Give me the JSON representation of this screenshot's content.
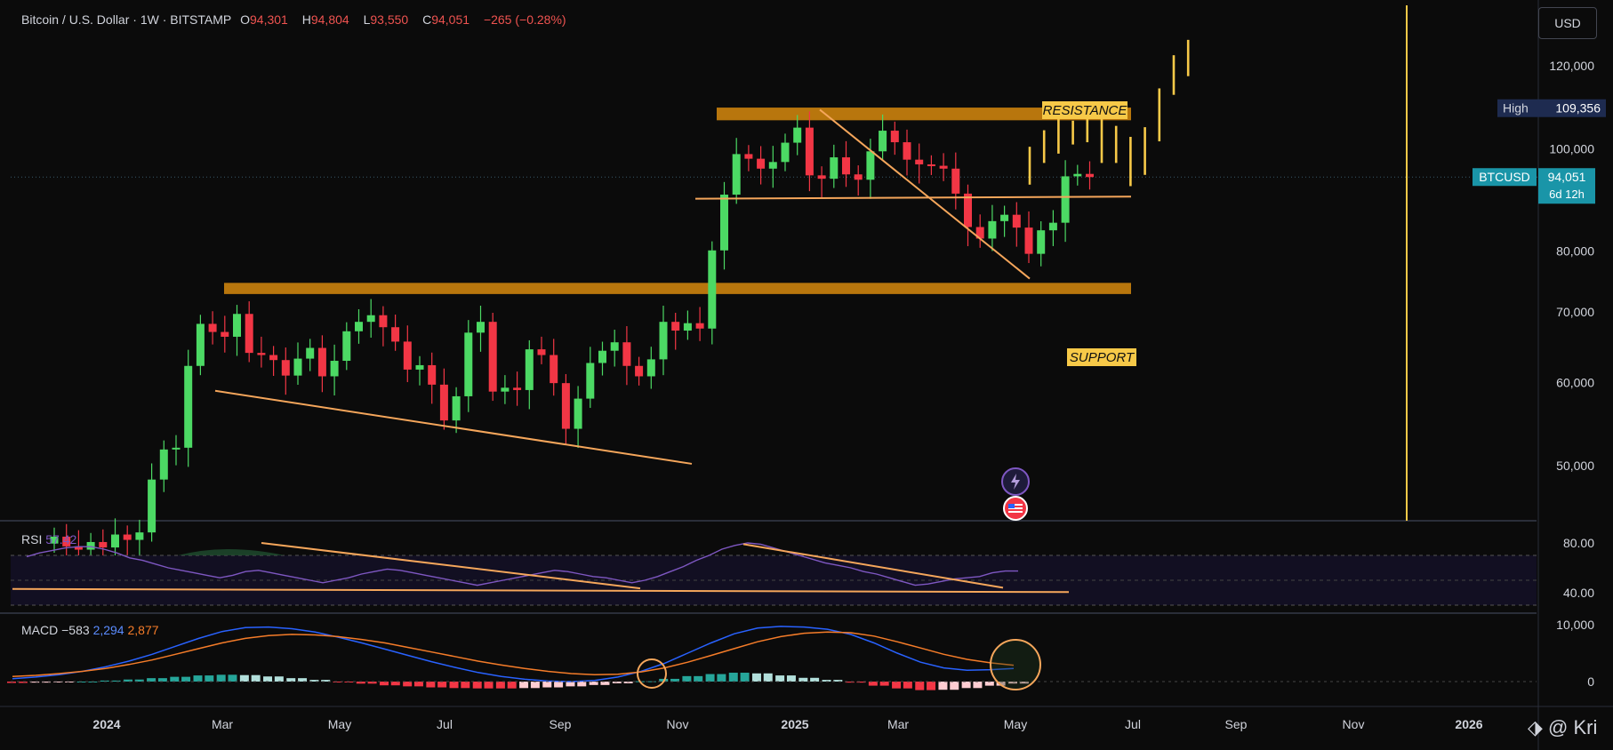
{
  "header": {
    "symbol": "Bitcoin / U.S. Dollar · 1W · BITSTAMP",
    "open_label": "O",
    "open": "94,301",
    "high_label": "H",
    "high": "94,804",
    "low_label": "L",
    "low": "93,550",
    "close_label": "C",
    "close": "94,051",
    "change": "−265 (−0.28%)"
  },
  "currency_button": "USD",
  "price_axis": {
    "ticks": [
      {
        "v": 120000,
        "label": "120,000"
      },
      {
        "v": 100000,
        "label": "100,000"
      },
      {
        "v": 80000,
        "label": "80,000"
      },
      {
        "v": 70000,
        "label": "70,000"
      },
      {
        "v": 60000,
        "label": "60,000"
      },
      {
        "v": 50000,
        "label": "50,000"
      }
    ],
    "high_tag": {
      "label": "High",
      "value": "109,356",
      "v": 109356
    },
    "last_tag": {
      "label": "BTCUSD",
      "value": "94,051",
      "countdown": "6d 12h",
      "v": 94051
    }
  },
  "annotations": {
    "resistance": "RESISTANCE",
    "support": "SUPPORT",
    "resistance_zone": [
      106500,
      109500
    ],
    "support_zone": [
      72800,
      74600
    ],
    "neckline": 90000
  },
  "x_axis": [
    "2024",
    "Mar",
    "May",
    "Jul",
    "Sep",
    "Nov",
    "2025",
    "Mar",
    "May",
    "Jul",
    "Sep",
    "Nov",
    "2026"
  ],
  "rsi": {
    "label": "RSI",
    "value": "57.42",
    "ticks": [
      {
        "v": 80,
        "label": "80.00"
      },
      {
        "v": 40,
        "label": "40.00"
      }
    ]
  },
  "macd": {
    "label": "MACD",
    "hist": "−583",
    "macd": "2,294",
    "signal": "2,877",
    "ticks": [
      {
        "v": 10000,
        "label": "10,000"
      },
      {
        "v": 0,
        "label": "0"
      }
    ]
  },
  "watermark": "@ Kri",
  "colors": {
    "up": "#26a69a",
    "up_bright": "#4cd964",
    "down": "#f23645",
    "accent": "#f7c948",
    "orange": "#f5a65b",
    "zone": "#c27c0e",
    "macd_line": "#2962ff",
    "signal_line": "#f57c29",
    "rsi_line": "#7e57c2"
  },
  "chart_data": {
    "type": "candlestick",
    "title": "Bitcoin / U.S. Dollar · 1W · BITSTAMP",
    "ylim": [
      40000,
      127000
    ],
    "weekly_closes": [
      42800,
      41900,
      41600,
      42300,
      41800,
      43000,
      42500,
      43200,
      48500,
      51800,
      52000,
      62200,
      68200,
      67000,
      66300,
      69700,
      64000,
      63700,
      63000,
      60900,
      63200,
      64700,
      60800,
      62900,
      67100,
      68500,
      69500,
      67700,
      65600,
      61700,
      62300,
      59700,
      55200,
      58200,
      66900,
      68500,
      58800,
      59300,
      59000,
      64500,
      63700,
      59900,
      54200,
      57900,
      62600,
      64300,
      65500,
      62200,
      60800,
      63100,
      68500,
      67200,
      68300,
      67500,
      80100,
      90500,
      98900,
      97900,
      95800,
      97200,
      101400,
      104800,
      94400,
      93700,
      98200,
      94600,
      93500,
      99500,
      104100,
      101500,
      97700,
      96700,
      96400,
      95800,
      90700,
      84300,
      82200,
      85400,
      86600,
      84200,
      79500,
      83700,
      85100,
      94200,
      94700,
      94051
    ],
    "projection_ticks_high": [
      100500,
      104200,
      106800,
      106400,
      108900,
      109800,
      105200,
      102700,
      104900,
      114200,
      122800,
      127000
    ],
    "projection_ticks_low": [
      92500,
      97000,
      99000,
      101000,
      101500,
      97000,
      97000,
      92200,
      94500,
      101700,
      112600,
      117300
    ],
    "rsi": [
      69,
      72,
      74,
      76,
      77,
      77,
      75,
      72,
      68,
      66,
      63,
      60,
      58,
      56,
      54,
      52,
      54,
      57,
      58,
      56,
      54,
      52,
      50,
      48,
      50,
      52,
      55,
      57,
      59,
      58,
      56,
      54,
      52,
      50,
      48,
      46,
      48,
      50,
      52,
      54,
      56,
      58,
      57,
      55,
      53,
      52,
      50,
      48,
      50,
      53,
      57,
      61,
      66,
      70,
      75,
      78,
      80,
      79,
      76,
      73,
      70,
      67,
      64,
      62,
      60,
      57,
      55,
      52,
      49,
      46,
      47,
      49,
      51,
      52,
      53,
      56,
      57.42,
      57.42
    ],
    "macd_line": [
      500,
      800,
      1200,
      1800,
      2600,
      3600,
      4800,
      6200,
      7600,
      8800,
      9500,
      9600,
      9300,
      8700,
      7800,
      6800,
      5700,
      4600,
      3500,
      2500,
      1600,
      900,
      400,
      100,
      0,
      200,
      800,
      1800,
      3200,
      5000,
      6800,
      8400,
      9400,
      9700,
      9600,
      9200,
      8300,
      6800,
      5000,
      3400,
      2400,
      2000,
      2100,
      2294
    ],
    "signal_line": [
      900,
      1100,
      1400,
      1800,
      2300,
      3000,
      3800,
      4800,
      5800,
      6800,
      7600,
      8100,
      8300,
      8200,
      7900,
      7400,
      6800,
      6000,
      5200,
      4400,
      3600,
      2900,
      2300,
      1800,
      1400,
      1200,
      1300,
      1700,
      2400,
      3400,
      4600,
      5800,
      7000,
      7900,
      8500,
      8700,
      8600,
      8000,
      7000,
      5900,
      4800,
      3900,
      3300,
      2877
    ]
  }
}
